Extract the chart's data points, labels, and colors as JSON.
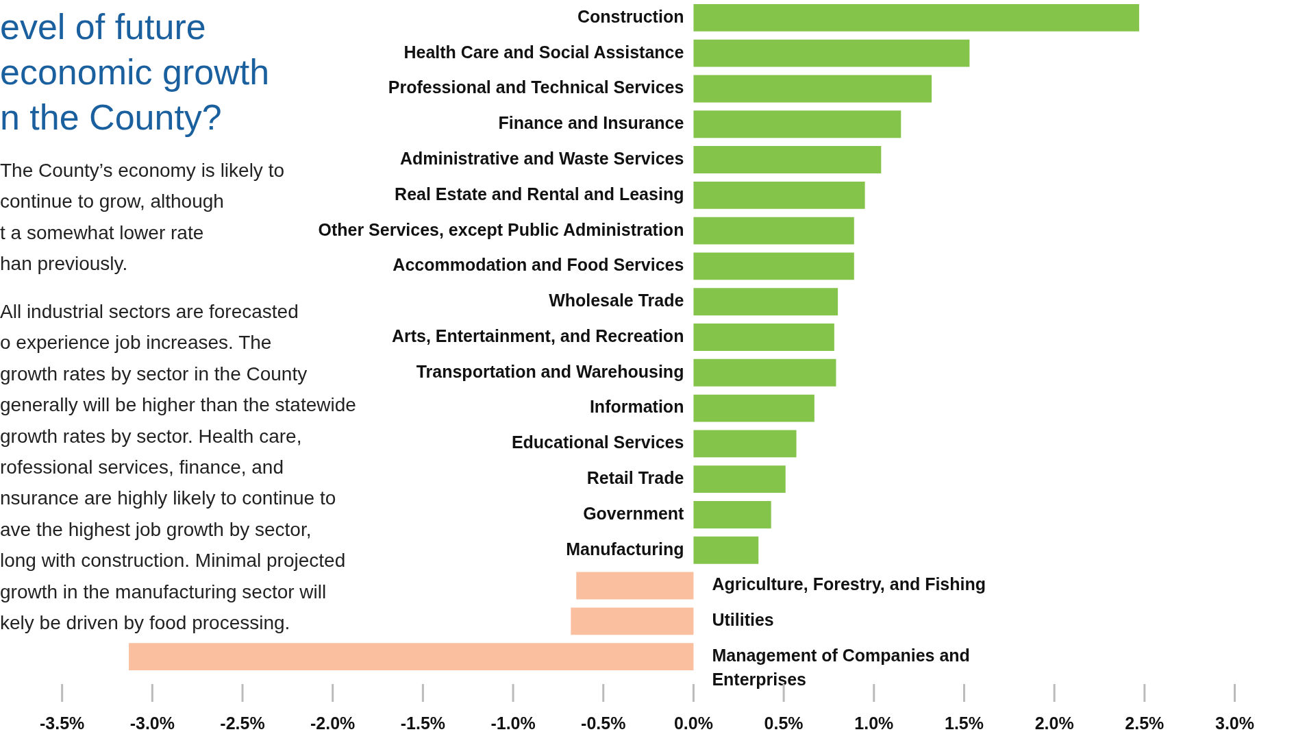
{
  "chart_data": {
    "type": "bar",
    "orientation": "horizontal",
    "title": "evel of future\neconomic growth\nn the County?",
    "annotations": [
      "The County’s economy is likely to\ncontinue to grow, although\nt a somewhat lower rate\nhan previously.",
      "All industrial sectors are forecasted\no experience job increases. The\ngrowth rates by sector in the County\ngenerally will be higher than the statewide\ngrowth rates by sector. Health care,\nrofessional services, finance, and\nnsurance are highly likely to continue to\nave the highest job growth by sector,\nlong with construction. Minimal projected\ngrowth in the manufacturing sector will\nkely be driven by food processing."
    ],
    "categories": [
      "Construction",
      "Health Care and Social Assistance",
      "Professional and Technical Services",
      "Finance and Insurance",
      "Administrative and Waste Services",
      "Real Estate and Rental and Leasing",
      "Other Services, except Public Administration",
      "Accommodation and Food Services",
      "Wholesale Trade",
      "Arts, Entertainment, and Recreation",
      "Transportation and Warehousing",
      "Information",
      "Educational Services",
      "Retail Trade",
      "Government",
      "Manufacturing",
      "Agriculture, Forestry, and Fishing",
      "Utilities",
      "Management of Companies and Enterprises"
    ],
    "values": [
      2.47,
      1.53,
      1.32,
      1.15,
      1.04,
      0.95,
      0.89,
      0.89,
      0.8,
      0.78,
      0.79,
      0.67,
      0.57,
      0.51,
      0.43,
      0.36,
      -0.65,
      -0.68,
      -3.13
    ],
    "colors": [
      "#84c44a",
      "#84c44a",
      "#84c44a",
      "#84c44a",
      "#84c44a",
      "#84c44a",
      "#84c44a",
      "#84c44a",
      "#84c44a",
      "#84c44a",
      "#84c44a",
      "#84c44a",
      "#84c44a",
      "#84c44a",
      "#84c44a",
      "#84c44a",
      "#f9bf9e",
      "#f9bf9e",
      "#f9bf9e"
    ],
    "xlim": [
      -3.5,
      3.0
    ],
    "xticks": [
      {
        "value": -3.5,
        "label": "-3.5%"
      },
      {
        "value": -3,
        "label": "-3.0%"
      },
      {
        "value": -2.5,
        "label": "-2.5%"
      },
      {
        "value": -2,
        "label": "-2.0%"
      },
      {
        "value": -1.5,
        "label": "-1.5%"
      },
      {
        "value": -1,
        "label": "-1.0%"
      },
      {
        "value": -0.5,
        "label": "-0.5%"
      },
      {
        "value": 0,
        "label": "0.0%"
      },
      {
        "value": 0.5,
        "label": "0.5%"
      },
      {
        "value": 1,
        "label": "1.0%"
      },
      {
        "value": 1.5,
        "label": "1.5%"
      },
      {
        "value": 2,
        "label": "2.0%"
      },
      {
        "value": 2.5,
        "label": "2.5%"
      },
      {
        "value": 3,
        "label": "3.0%"
      }
    ]
  }
}
